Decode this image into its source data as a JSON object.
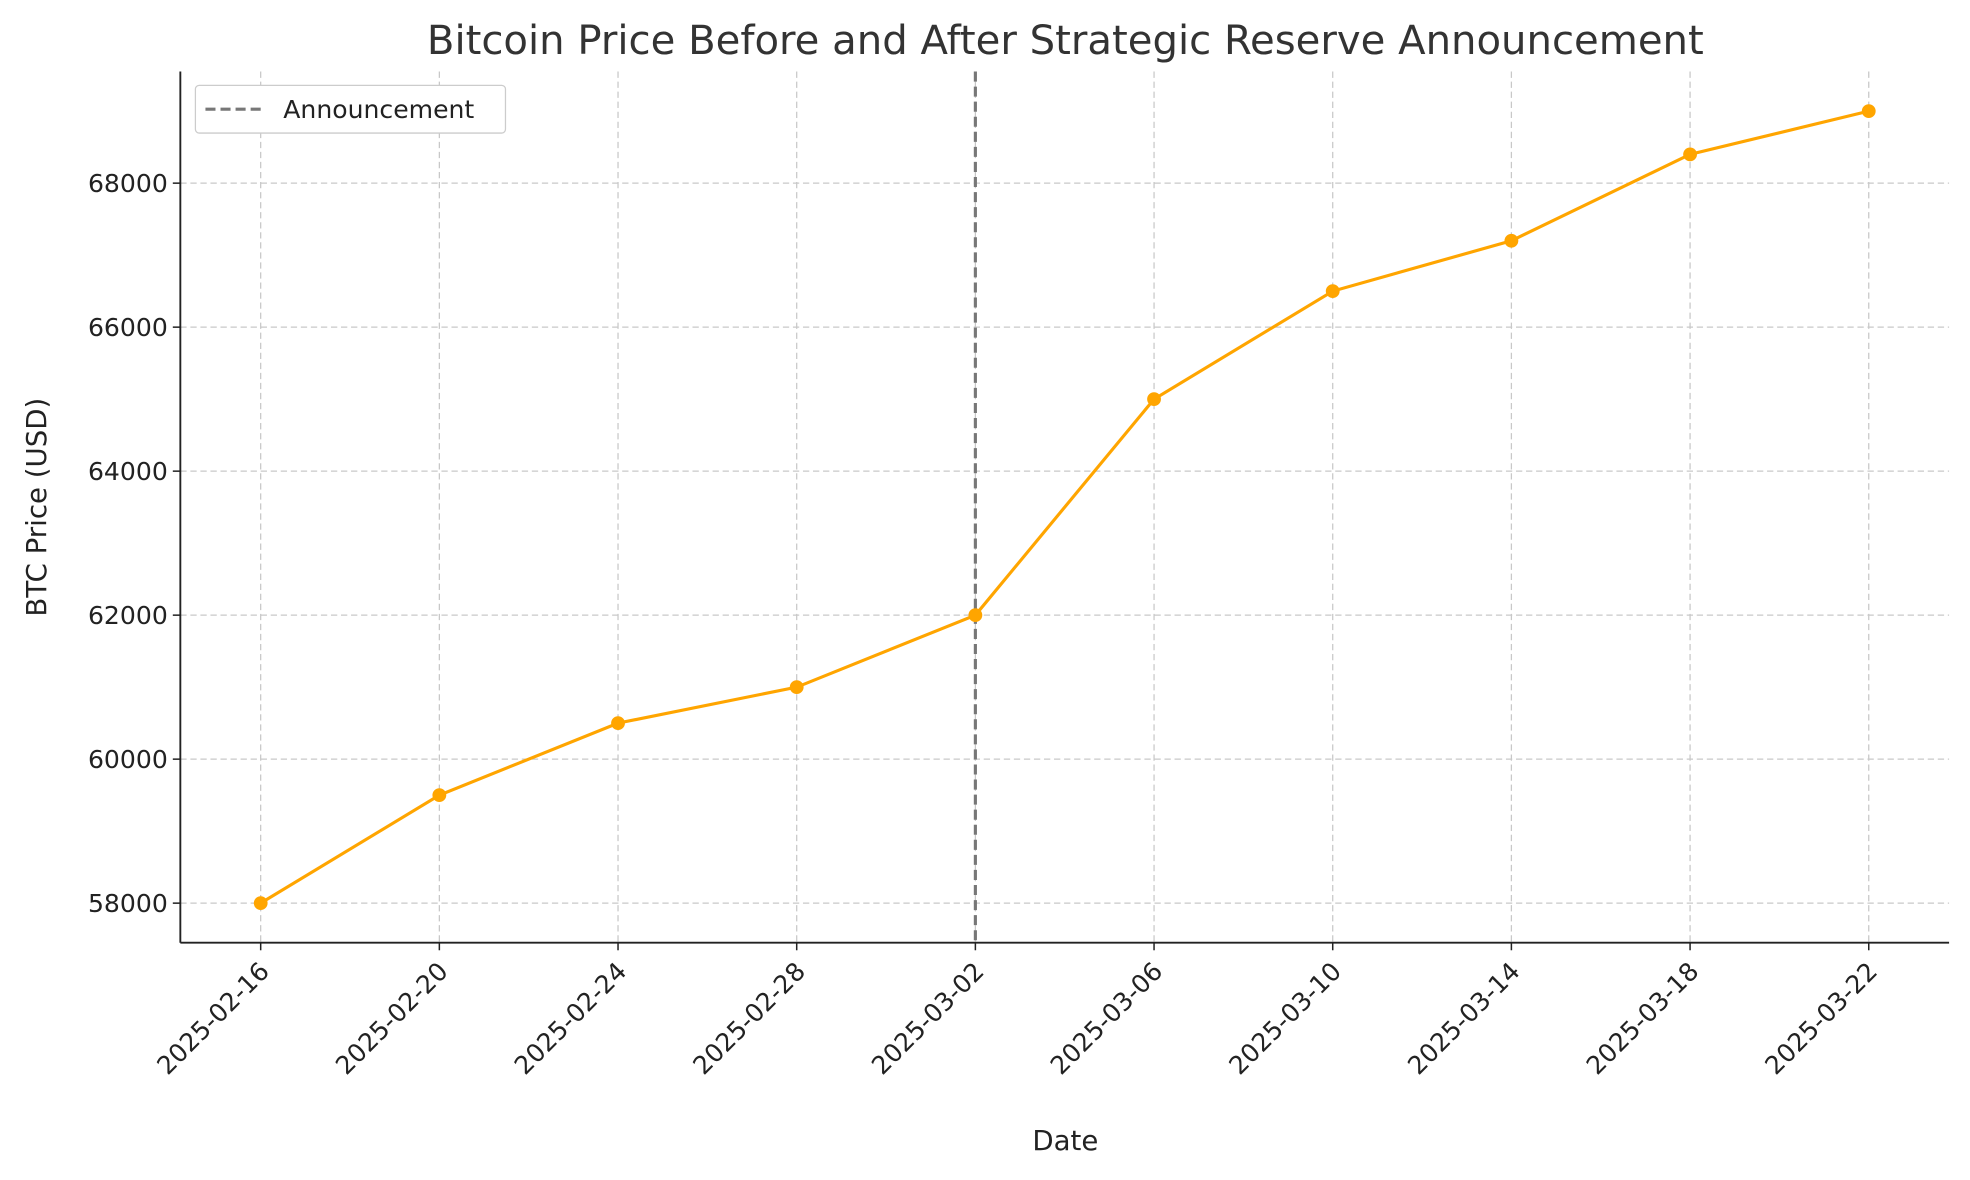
{
  "chart_data": {
    "type": "line",
    "title": "Bitcoin Price Before and After Strategic Reserve Announcement",
    "xlabel": "Date",
    "ylabel": "BTC Price (USD)",
    "x": [
      "2025-02-16",
      "2025-02-20",
      "2025-02-24",
      "2025-02-28",
      "2025-03-02",
      "2025-03-06",
      "2025-03-10",
      "2025-03-14",
      "2025-03-18",
      "2025-03-22"
    ],
    "values": [
      58000,
      59500,
      60500,
      61000,
      62000,
      65000,
      66500,
      67200,
      68400,
      69000
    ],
    "yticks": [
      58000,
      60000,
      62000,
      64000,
      66000,
      68000
    ],
    "ylim": [
      57450,
      69550
    ],
    "line_color": "#FFA500",
    "marker": "circle",
    "grid": true,
    "announcement": {
      "label": "Announcement",
      "x": "2025-03-02",
      "color": "#777777",
      "style": "dashed"
    },
    "legend_position": "top-left"
  }
}
